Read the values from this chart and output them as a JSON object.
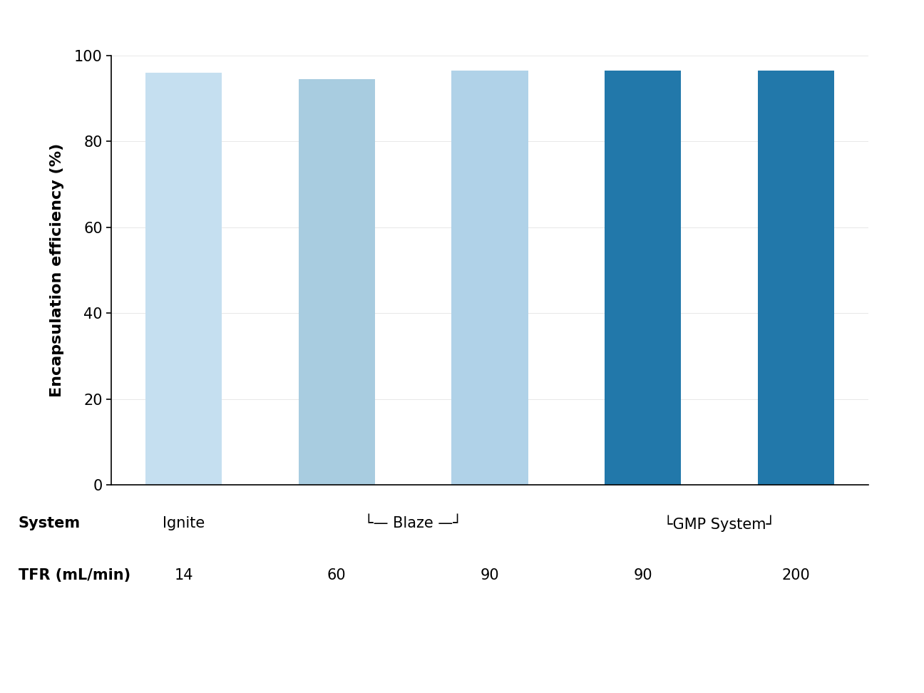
{
  "values": [
    96.0,
    94.5,
    96.5,
    96.5,
    96.5
  ],
  "bar_colors": [
    "#c5dff0",
    "#a8cce0",
    "#b0d2e8",
    "#2278aa",
    "#2278aa"
  ],
  "ylabel": "Encapsulation efficiency (%)",
  "ylim": [
    0,
    100
  ],
  "yticks": [
    0,
    20,
    40,
    60,
    80,
    100
  ],
  "background_color": "#ffffff",
  "tfr_labels": [
    "14",
    "60",
    "90",
    "90",
    "200"
  ],
  "x_positions": [
    0,
    1,
    2,
    3,
    4
  ],
  "bar_width": 0.5,
  "ylabel_fontsize": 16,
  "tick_fontsize": 15,
  "label_fontsize": 15
}
